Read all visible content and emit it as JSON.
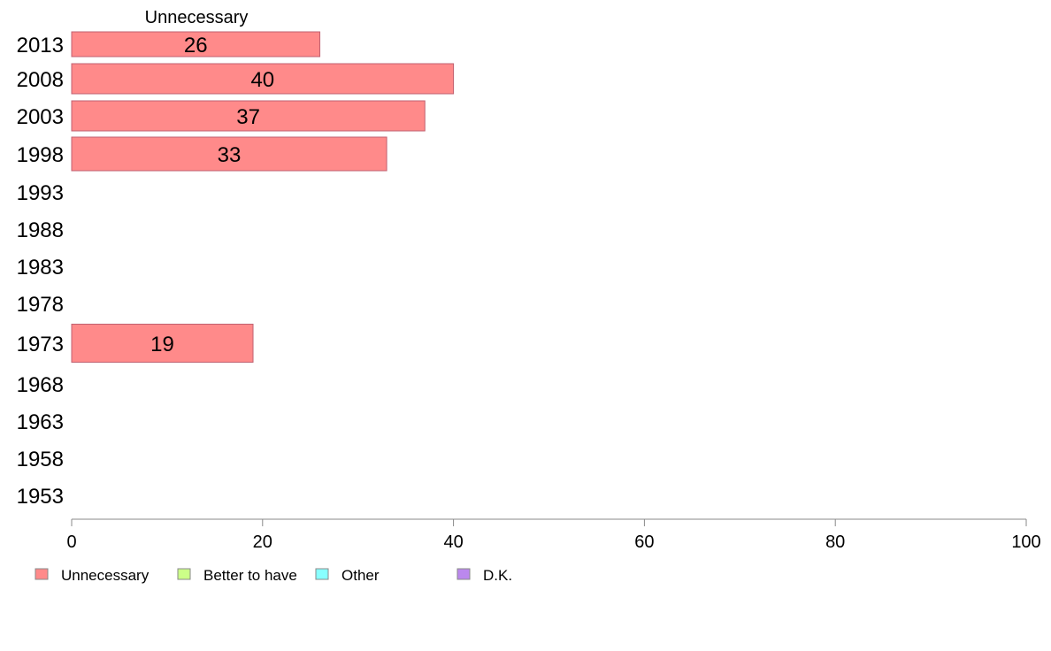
{
  "chart_data": {
    "type": "bar",
    "orientation": "horizontal",
    "categories": [
      "2013",
      "2008",
      "2003",
      "1998",
      "1993",
      "1988",
      "1983",
      "1978",
      "1973",
      "1968",
      "1963",
      "1958",
      "1953"
    ],
    "series": [
      {
        "name": "Unnecessary",
        "values": [
          26,
          40,
          37,
          33,
          null,
          null,
          null,
          null,
          19,
          null,
          null,
          null,
          null
        ]
      },
      {
        "name": "Better to have",
        "values": [
          null,
          null,
          null,
          null,
          null,
          null,
          null,
          null,
          null,
          null,
          null,
          null,
          null
        ]
      },
      {
        "name": "Other",
        "values": [
          null,
          null,
          null,
          null,
          null,
          null,
          null,
          null,
          null,
          null,
          null,
          null,
          null
        ]
      },
      {
        "name": "D.K.",
        "values": [
          null,
          null,
          null,
          null,
          null,
          null,
          null,
          null,
          null,
          null,
          null,
          null,
          null
        ]
      }
    ],
    "column_header": "Unnecessary",
    "xlim": [
      0,
      100
    ],
    "xticks": [
      0,
      20,
      40,
      60,
      80,
      100
    ],
    "grid": false,
    "legend_position": "bottom"
  },
  "colors": {
    "Unnecessary": "#ff8a8a",
    "Better to have": "#ccff88",
    "Other": "#88ffff",
    "D.K.": "#bb88ee",
    "bar_stroke": "#c06070",
    "axis": "#888888"
  }
}
